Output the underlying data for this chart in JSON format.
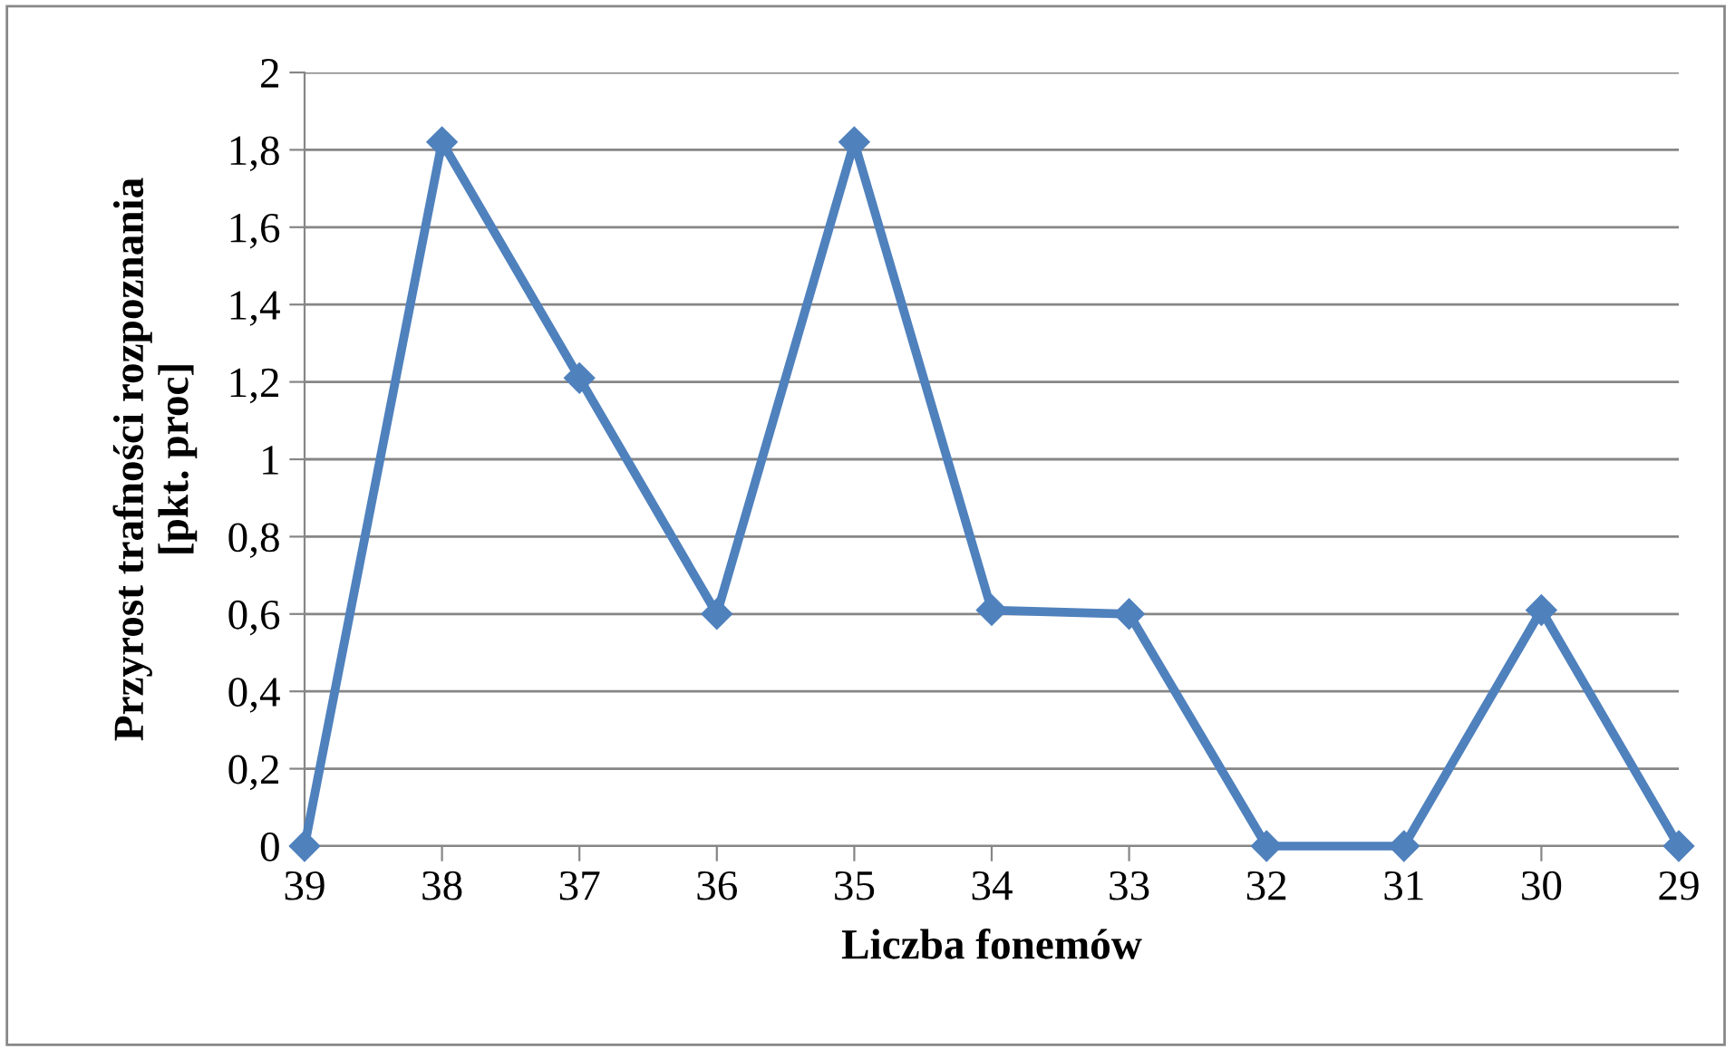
{
  "chart_data": {
    "type": "line",
    "xlabel": "Liczba fonemów",
    "ylabel": "Przyrost trafności rozpoznania\n[pkt. proc]",
    "categories": [
      "39",
      "38",
      "37",
      "36",
      "35",
      "34",
      "33",
      "32",
      "31",
      "30",
      "29"
    ],
    "series": [
      {
        "color": "#4f81bd",
        "values": [
          0,
          1.82,
          1.21,
          0.6,
          1.82,
          0.61,
          0.6,
          0,
          0,
          0.61,
          0
        ]
      }
    ],
    "ylim": [
      0,
      2
    ],
    "yticks": [
      0,
      {
        "value": 0.2,
        "label": "0,2"
      },
      {
        "value": 0.4,
        "label": "0,4"
      },
      {
        "value": 0.6,
        "label": "0,6"
      },
      {
        "value": 0.8,
        "label": "0,8"
      },
      1,
      {
        "value": 1.2,
        "label": "1,2"
      },
      {
        "value": 1.4,
        "label": "1,4"
      },
      {
        "value": 1.6,
        "label": "1,6"
      },
      {
        "value": 1.8,
        "label": "1,8"
      },
      2
    ],
    "grid": "y",
    "marker": "diamond",
    "line_style": "solid",
    "legend": false
  }
}
